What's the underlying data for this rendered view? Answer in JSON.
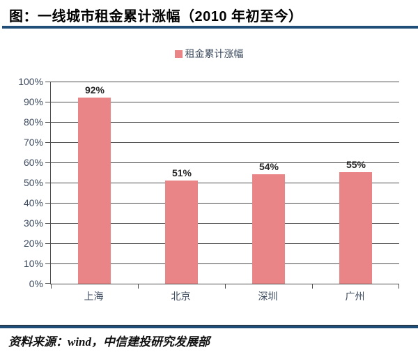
{
  "title": "图：一线城市租金累计涨幅（2010 年初至今）",
  "legend": {
    "label": "租金累计涨幅"
  },
  "source": "资料来源：wind，中信建投研究发展部",
  "colors": {
    "background": "#FFFFFF",
    "bar": "#E98586",
    "rule": "#1F4E79",
    "grid": "#4D4D4D",
    "axis_line": "#4D4D4D",
    "tick_text": "#3C4A5E",
    "data_label": "#262626",
    "title_text": "#000000",
    "source_text": "#111111"
  },
  "chart_data": {
    "type": "bar",
    "title": "图：一线城市租金累计涨幅（2010 年初至今）",
    "categories": [
      "上海",
      "北京",
      "深圳",
      "广州"
    ],
    "values": [
      92,
      51,
      54,
      55
    ],
    "data_labels": [
      "92%",
      "51%",
      "54%",
      "55%"
    ],
    "series_name": "租金累计涨幅",
    "xlabel": "",
    "ylabel": "",
    "ylim": [
      0,
      100
    ],
    "ytick_step": 10,
    "ytick_labels": [
      "0%",
      "10%",
      "20%",
      "30%",
      "40%",
      "50%",
      "60%",
      "70%",
      "80%",
      "90%",
      "100%"
    ],
    "grid": true,
    "legend_position": "top"
  }
}
